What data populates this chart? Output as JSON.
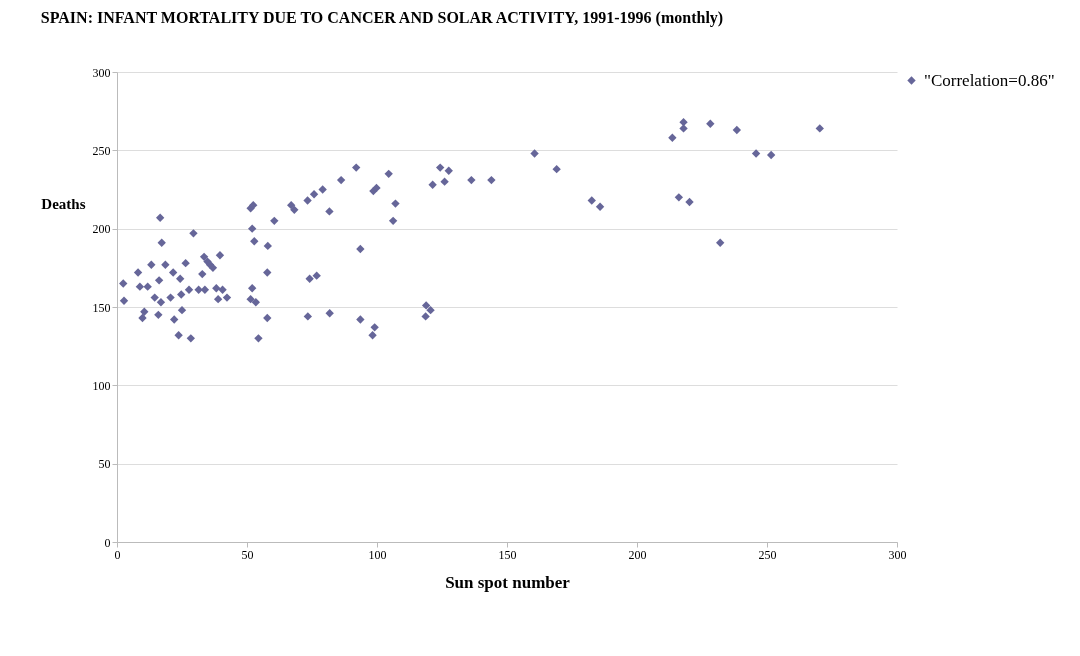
{
  "chart_data": {
    "type": "scatter",
    "title": "SPAIN: INFANT MORTALITY DUE TO CANCER AND SOLAR ACTIVITY, 1991-1996 (monthly)",
    "xlabel": "Sun spot number",
    "ylabel": "Deaths",
    "xlim": [
      0,
      300
    ],
    "xticks": [
      0,
      50,
      100,
      150,
      200,
      250,
      300
    ],
    "ylim": [
      0,
      300
    ],
    "yticks": [
      0,
      50,
      100,
      150,
      200,
      250,
      300
    ],
    "grid": "y",
    "legend": "right",
    "marker": "diamond",
    "series": [
      {
        "name": "\"Correlation=0.86\"",
        "color": "#666699",
        "x": [
          2.4,
          2.7,
          8.1,
          8.8,
          9.8,
          10.5,
          11.8,
          13.2,
          14.5,
          15.9,
          16.6,
          16.2,
          17.2,
          16.9,
          18.6,
          20.6,
          21.6,
          22,
          23.7,
          24.3,
          24.7,
          25,
          26.4,
          27.7,
          28.4,
          29.4,
          31.4,
          32.8,
          33.5,
          33.8,
          34.8,
          35.8,
          36.9,
          38.2,
          38.9,
          39.6,
          40.6,
          42.3,
          51.4,
          52.4,
          52,
          52.8,
          52,
          51.4,
          53.4,
          54.4,
          58,
          57.8,
          57.8,
          60.5,
          67,
          68.2,
          73.3,
          75.8,
          79.1,
          86.2,
          92,
          81.7,
          93.6,
          74.1,
          76.8,
          73.4,
          81.8,
          93.6,
          99.1,
          98.3,
          98.6,
          99.8,
          104.5,
          107.1,
          106.2,
          121.4,
          124.3,
          127.6,
          126,
          136.3,
          144,
          160.6,
          169.1,
          182.6,
          185.8,
          118.9,
          120.6,
          118.7,
          213.6,
          217.9,
          217.9,
          228.2,
          238.4,
          245.8,
          251.6,
          270.3,
          216.1,
          220.2,
          232
        ],
        "values": [
          165,
          154,
          172,
          163,
          143,
          147,
          163,
          177,
          156,
          145,
          207,
          167,
          191,
          153,
          177,
          156,
          172,
          142,
          132,
          168,
          158,
          148,
          178,
          161,
          130,
          197,
          161,
          171,
          182,
          161,
          179,
          177,
          175,
          162,
          155,
          183,
          161,
          156,
          213,
          215,
          200,
          192,
          162,
          155,
          153,
          130,
          189,
          172,
          143,
          205,
          215,
          212,
          218,
          222,
          225,
          231,
          239,
          211,
          187,
          168,
          170,
          144,
          146,
          142,
          137,
          132,
          224,
          226,
          235,
          216,
          205,
          228,
          239,
          237,
          230,
          231,
          231,
          248,
          238,
          218,
          214,
          151,
          148,
          144,
          258,
          268,
          264,
          267,
          263,
          248,
          247,
          264,
          220,
          217,
          191
        ]
      }
    ]
  }
}
